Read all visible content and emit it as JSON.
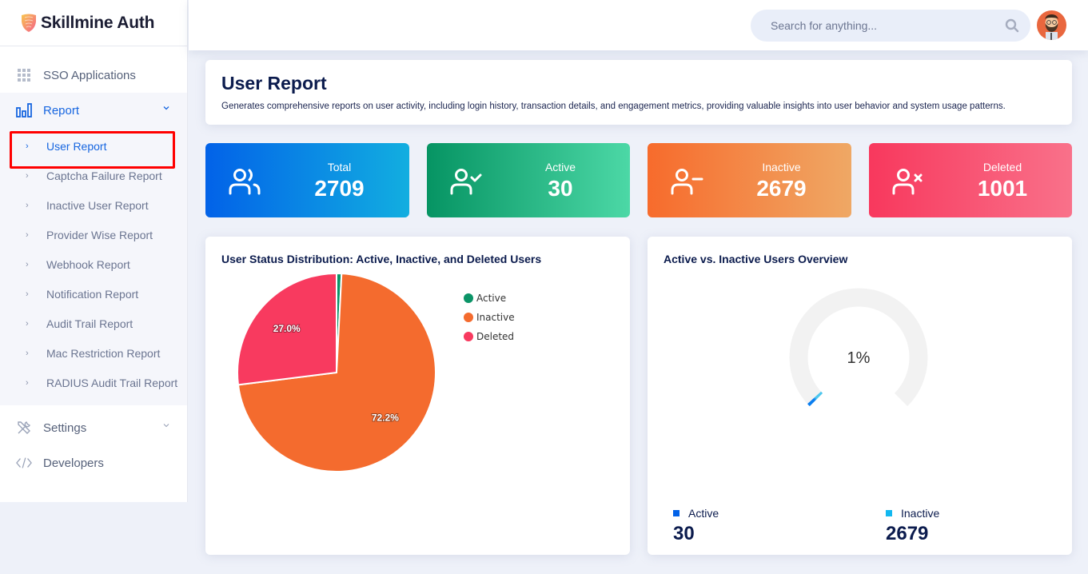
{
  "app": {
    "name": "Skillmine Auth"
  },
  "sidebar": {
    "items": [
      {
        "label": "SSO Applications",
        "icon": "grid-icon"
      },
      {
        "label": "Report",
        "icon": "bar-chart-icon",
        "expanded": true
      },
      {
        "label": "Settings",
        "icon": "tools-icon"
      },
      {
        "label": "Developers",
        "icon": "code-icon"
      }
    ],
    "report_submenu": [
      {
        "label": "User Report",
        "active": true
      },
      {
        "label": "Captcha Failure Report"
      },
      {
        "label": "Inactive User Report"
      },
      {
        "label": "Provider Wise Report"
      },
      {
        "label": "Webhook Report"
      },
      {
        "label": "Notification Report"
      },
      {
        "label": "Audit Trail Report"
      },
      {
        "label": "Mac Restriction Report"
      },
      {
        "label": "RADIUS Audit Trail Report"
      }
    ]
  },
  "header": {
    "search_placeholder": "Search for anything..."
  },
  "page": {
    "title": "User Report",
    "description": "Generates comprehensive reports on user activity, including login history, transaction details, and engagement metrics, providing valuable insights into user behavior and system usage patterns."
  },
  "stats": [
    {
      "label": "Total",
      "value": "2709",
      "icon": "users-icon"
    },
    {
      "label": "Active",
      "value": "30",
      "icon": "user-check-icon"
    },
    {
      "label": "Inactive",
      "value": "2679",
      "icon": "user-minus-icon"
    },
    {
      "label": "Deleted",
      "value": "1001",
      "icon": "user-x-icon"
    }
  ],
  "colors": {
    "active": "#0b9467",
    "inactive": "#f46b2e",
    "deleted": "#f83a5f",
    "gauge_track": "#f2f2f2",
    "gauge_fill": "#0a84f0",
    "gauge_active_legend": "#0262e8",
    "gauge_inactive_legend": "#12b8f0"
  },
  "chart_data": [
    {
      "type": "pie",
      "title": "User Status Distribution: Active, Inactive, and Deleted Users",
      "categories": [
        "Active",
        "Inactive",
        "Deleted"
      ],
      "values": [
        30,
        2679,
        1001
      ],
      "labels": [
        "",
        "72.2%",
        "27.0%"
      ],
      "legend": "right"
    },
    {
      "type": "gauge",
      "title": "Active vs. Inactive Users Overview",
      "value_percent": 1,
      "value_label": "1%",
      "series": [
        {
          "name": "Active",
          "value": "30"
        },
        {
          "name": "Inactive",
          "value": "2679"
        }
      ]
    }
  ]
}
